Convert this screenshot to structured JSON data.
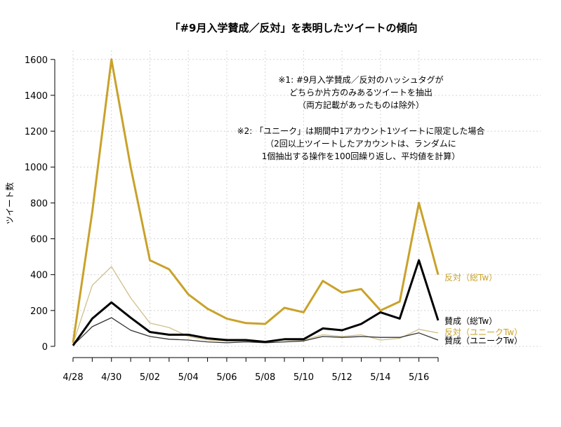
{
  "chart_data": {
    "type": "line",
    "title": "「#9月入学賛成／反対」を表明したツイートの傾向",
    "xlabel": "",
    "ylabel": "ツイート数",
    "ylim": [
      0,
      1650
    ],
    "yticks": [
      0,
      200,
      400,
      600,
      800,
      1000,
      1200,
      1400,
      1600
    ],
    "ytick_labels": [
      "0",
      "200",
      "400",
      "600",
      "800",
      "1000",
      "1200",
      "1400",
      "1600"
    ],
    "x": [
      "4/28",
      "4/29",
      "4/30",
      "5/01",
      "5/02",
      "5/03",
      "5/04",
      "5/05",
      "5/06",
      "5/07",
      "5/08",
      "5/09",
      "5/10",
      "5/11",
      "5/12",
      "5/13",
      "5/14",
      "5/15",
      "5/16",
      "5/17"
    ],
    "xtick_labels": [
      "4/28",
      "",
      "4/30",
      "",
      "5/02",
      "",
      "5/04",
      "",
      "5/06",
      "",
      "5/08",
      "",
      "5/10",
      "",
      "5/12",
      "",
      "5/14",
      "",
      "5/16",
      ""
    ],
    "grid": true,
    "notes": [
      "※1: #9月入学賛成／反対のハッシュタグが",
      "どちらか片方のみあるツイートを抽出",
      "（両方記載があったものは除外）",
      "※2: 「ユニーク」は期間中1アカウント1ツイートに限定した場合",
      "（2回以上ツイートしたアカウントは、ランダムに",
      "1個抽出する操作を100回繰り返し、平均値を計算）"
    ],
    "series": [
      {
        "name": "反対（総Tw）",
        "color": "#c9a22a",
        "width": 3,
        "values": [
          20,
          750,
          1600,
          1000,
          480,
          430,
          290,
          210,
          155,
          130,
          125,
          215,
          190,
          365,
          300,
          320,
          200,
          250,
          800,
          400
        ]
      },
      {
        "name": "反対（ユニークTw）",
        "color": "#cfc08a",
        "width": 1.3,
        "values": [
          15,
          340,
          445,
          270,
          130,
          105,
          55,
          35,
          30,
          30,
          25,
          35,
          35,
          65,
          55,
          65,
          35,
          45,
          95,
          75
        ]
      },
      {
        "name": "賛成（総Tw）",
        "color": "#000000",
        "width": 3,
        "values": [
          5,
          155,
          245,
          160,
          80,
          65,
          65,
          45,
          35,
          35,
          25,
          40,
          40,
          100,
          90,
          125,
          190,
          155,
          480,
          145
        ]
      },
      {
        "name": "賛成（ユニークTw）",
        "color": "#333333",
        "width": 1.3,
        "values": [
          5,
          110,
          160,
          90,
          55,
          40,
          35,
          25,
          20,
          25,
          20,
          25,
          30,
          55,
          50,
          55,
          50,
          50,
          75,
          35
        ]
      }
    ],
    "legend_placement": "right, at line ends"
  }
}
